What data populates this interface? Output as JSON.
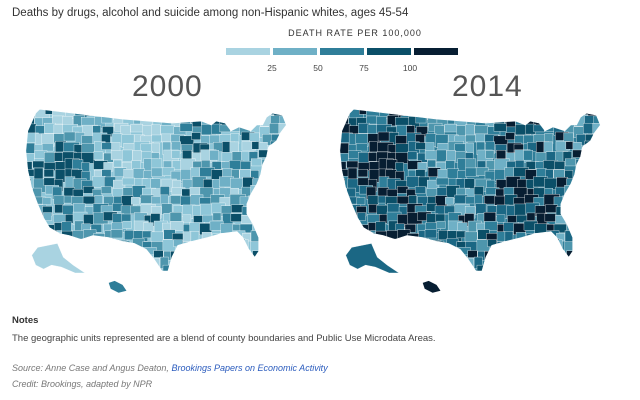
{
  "title": "Deaths by drugs, alcohol and suicide among non-Hispanic whites, ages 45-54",
  "legend": {
    "title": "DEATH RATE PER 100,000",
    "colors": [
      "#a9d3e1",
      "#6fb0c6",
      "#2f7e99",
      "#0b4f68",
      "#071e32"
    ],
    "ticks": [
      "25",
      "50",
      "75",
      "100"
    ]
  },
  "maps": [
    {
      "year": "2000",
      "base_color": "#8ec6d8",
      "region_colors": [
        "#a9d3e1",
        "#8ec6d8",
        "#6fb0c6",
        "#4e96ad",
        "#2f7e99",
        "#0b4f68"
      ]
    },
    {
      "year": "2014",
      "base_color": "#2f7e99",
      "region_colors": [
        "#6fb0c6",
        "#4e96ad",
        "#2f7e99",
        "#1b6784",
        "#0b4f68",
        "#071e32"
      ]
    }
  ],
  "notes": {
    "label": "Notes",
    "text": "The geographic units represented are a blend of county boundaries and Public Use Microdata Areas."
  },
  "source": {
    "prefix": "Source: Anne Case and Angus Deaton, ",
    "link": "Brookings Papers on Economic Activity"
  },
  "credit": "Credit: Brookings, adapted by NPR"
}
